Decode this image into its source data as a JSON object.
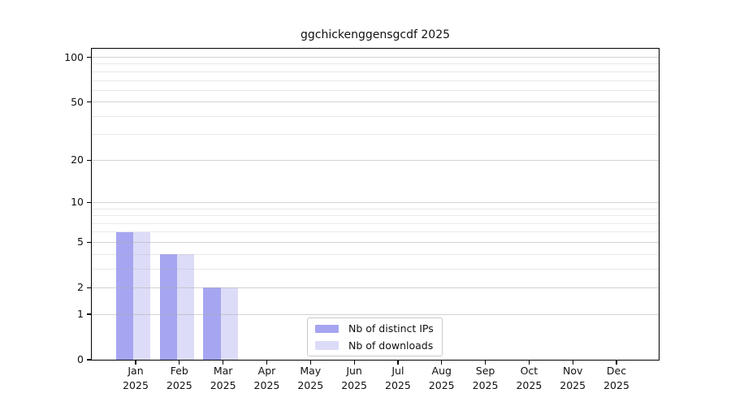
{
  "title": "ggchickenggensgcdf 2025",
  "chart_data": {
    "type": "bar",
    "title": "ggchickenggensgcdf 2025",
    "x_axis": {
      "months": [
        "Jan",
        "Feb",
        "Mar",
        "Apr",
        "May",
        "Jun",
        "Jul",
        "Aug",
        "Sep",
        "Oct",
        "Nov",
        "Dec"
      ],
      "year": "2025"
    },
    "y_axis": {
      "scale": "log1p",
      "ticks": [
        0,
        1,
        2,
        5,
        10,
        20,
        50,
        100
      ],
      "minor_gridlines": [
        3,
        4,
        6,
        7,
        8,
        9,
        30,
        40,
        60,
        70,
        80,
        90
      ],
      "range": [
        0,
        114
      ],
      "grid": true
    },
    "series": [
      {
        "name": "Nb of distinct IPs",
        "color": "#a5a5f1",
        "values": [
          6,
          4,
          2,
          0,
          0,
          0,
          0,
          0,
          0,
          0,
          0,
          0
        ]
      },
      {
        "name": "Nb of downloads",
        "color": "#dcdcf8",
        "values": [
          6,
          4,
          2,
          0,
          0,
          0,
          0,
          0,
          0,
          0,
          0,
          0
        ]
      }
    ],
    "legend": {
      "position": "inside-bottom-center",
      "border_color": "#c9c9c9"
    },
    "colors": {
      "background": "#ffffff",
      "spine": "#000000",
      "major_grid": "#d9d9d9",
      "minor_grid": "#e9e9e9",
      "text": "#111111"
    }
  }
}
